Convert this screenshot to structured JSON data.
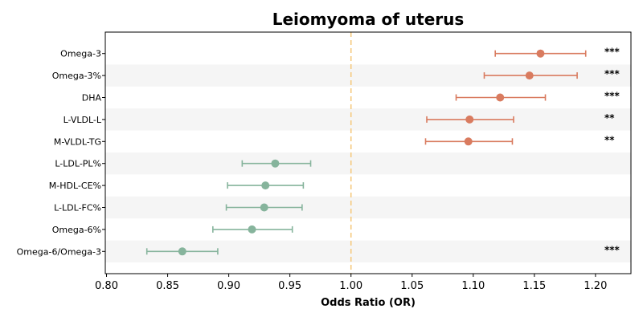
{
  "chart_data": {
    "type": "scatter",
    "subtype": "forest-plot",
    "title": "Leiomyoma of uterus",
    "xlabel": "Odds Ratio (OR)",
    "ylabel": "",
    "xlim": [
      0.799,
      1.229
    ],
    "xticks": [
      "0.80",
      "0.85",
      "0.90",
      "0.95",
      "1.00",
      "1.05",
      "1.10",
      "1.15",
      "1.20"
    ],
    "reference_line": 1.0,
    "colors": {
      "positive": "#d97b5f",
      "negative": "#86b49c",
      "reference": "#f5c778",
      "band": "#f5f5f5"
    },
    "rows": [
      {
        "label": "Omega-3",
        "or": 1.155,
        "lo": 1.118,
        "hi": 1.192,
        "sig": "***"
      },
      {
        "label": "Omega-3%",
        "or": 1.146,
        "lo": 1.109,
        "hi": 1.185,
        "sig": "***"
      },
      {
        "label": "DHA",
        "or": 1.122,
        "lo": 1.086,
        "hi": 1.159,
        "sig": "***"
      },
      {
        "label": "L-VLDL-L",
        "or": 1.097,
        "lo": 1.062,
        "hi": 1.133,
        "sig": "**"
      },
      {
        "label": "M-VLDL-TG",
        "or": 1.096,
        "lo": 1.061,
        "hi": 1.132,
        "sig": "**"
      },
      {
        "label": "L-LDL-PL%",
        "or": 0.938,
        "lo": 0.911,
        "hi": 0.967,
        "sig": ""
      },
      {
        "label": "M-HDL-CE%",
        "or": 0.93,
        "lo": 0.899,
        "hi": 0.961,
        "sig": ""
      },
      {
        "label": "L-LDL-FC%",
        "or": 0.929,
        "lo": 0.898,
        "hi": 0.96,
        "sig": ""
      },
      {
        "label": "Omega-6%",
        "or": 0.919,
        "lo": 0.887,
        "hi": 0.952,
        "sig": ""
      },
      {
        "label": "Omega-6/Omega-3",
        "or": 0.862,
        "lo": 0.833,
        "hi": 0.891,
        "sig": "***"
      }
    ]
  }
}
